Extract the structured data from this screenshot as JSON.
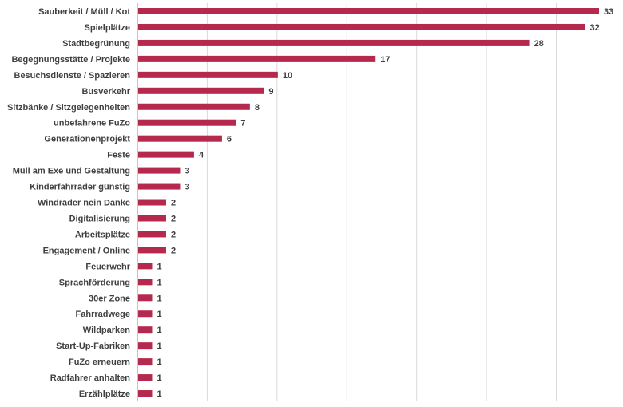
{
  "chart_data": {
    "type": "bar",
    "orientation": "horizontal",
    "title": "",
    "xlabel": "",
    "ylabel": "",
    "xlim": [
      0,
      35
    ],
    "grid": "vertical",
    "bar_color": "#b5294e",
    "categories": [
      "Sauberkeit / Müll / Kot",
      "Spielplätze",
      "Stadtbegrünung",
      "Begegnungsstätte / Projekte",
      "Besuchsdienste / Spazieren",
      "Busverkehr",
      "Sitzbänke / Sitzgelegenheiten",
      "unbefahrene FuZo",
      "Generationenprojekt",
      "Feste",
      "Müll am Exe und Gestaltung",
      "Kinderfahrräder günstig",
      "Windräder nein Danke",
      "Digitalisierung",
      "Arbeitsplätze",
      "Engagement / Online",
      "Feuerwehr",
      "Sprachförderung",
      "30er Zone",
      "Fahrradwege",
      "Wildparken",
      "Start-Up-Fabriken",
      "FuZo erneuern",
      "Radfahrer anhalten",
      "Erzählplätze"
    ],
    "values": [
      33,
      32,
      28,
      17,
      10,
      9,
      8,
      7,
      6,
      4,
      3,
      3,
      2,
      2,
      2,
      2,
      1,
      1,
      1,
      1,
      1,
      1,
      1,
      1,
      1
    ]
  }
}
